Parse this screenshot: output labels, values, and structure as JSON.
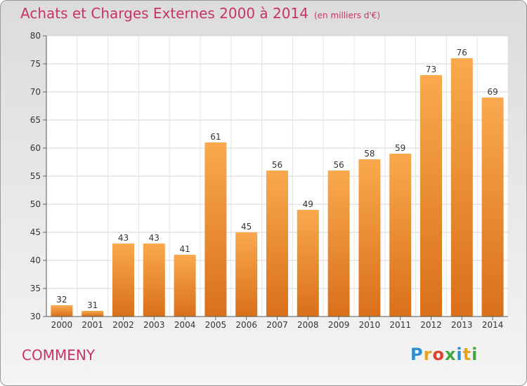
{
  "title": "Achats et Charges Externes 2000 à 2014",
  "subtitle": "(en milliers d'€)",
  "commune": "COMMENY",
  "logo": {
    "letters": [
      "P",
      "r",
      "o",
      "x",
      "i",
      "t",
      "i"
    ],
    "colors": [
      "#2a8fd0",
      "#e8a21c",
      "#e0412e",
      "#3fa83c",
      "#2a8fd0",
      "#e8a21c",
      "#3fa83c"
    ]
  },
  "chart_data": {
    "type": "bar",
    "categories": [
      "2000",
      "2001",
      "2002",
      "2003",
      "2004",
      "2005",
      "2006",
      "2007",
      "2008",
      "2009",
      "2010",
      "2011",
      "2012",
      "2013",
      "2014"
    ],
    "values": [
      32,
      31,
      43,
      43,
      41,
      61,
      45,
      56,
      49,
      56,
      58,
      59,
      73,
      76,
      69
    ],
    "ylim": [
      30,
      80
    ],
    "yticks": [
      30,
      35,
      40,
      45,
      50,
      55,
      60,
      65,
      70,
      75,
      80
    ],
    "grid": true,
    "bar_color": "#f08a2a"
  }
}
